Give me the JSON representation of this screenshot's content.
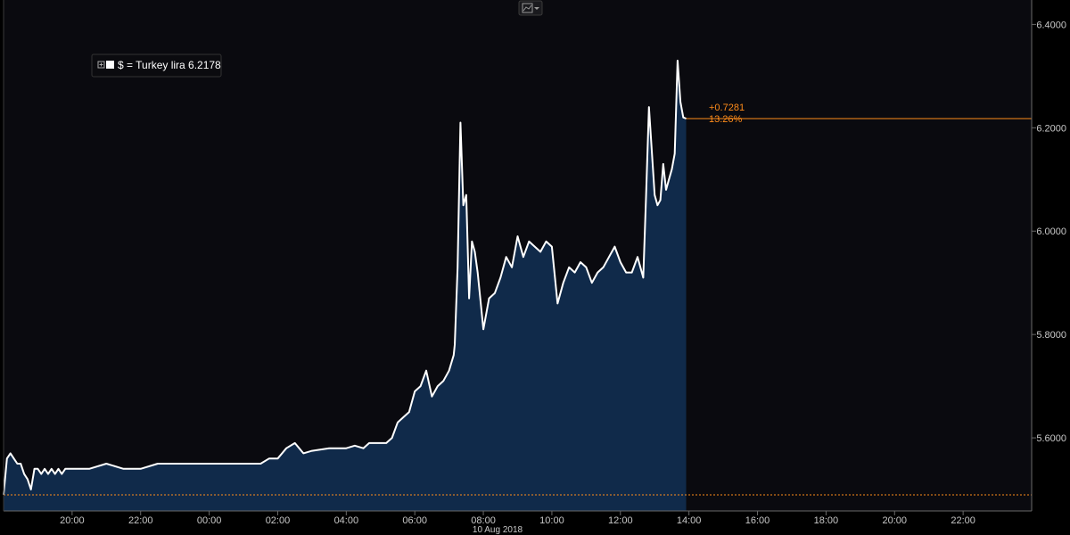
{
  "colors": {
    "background": "#000000",
    "plot_background": "#0a0a0f",
    "area_fill": "#102a4a",
    "line": "#ffffff",
    "reference": "#ff8c1a",
    "axis_text": "#c8c8c8"
  },
  "icons": {
    "chart_type": "line-chart-icon",
    "dropdown": "chevron-down-icon",
    "legend_expand": "plus-box-icon",
    "legend_swatch": "white-square-icon"
  },
  "legend": {
    "label": "$ =  Turkey lira 6.2178"
  },
  "annotation": {
    "change": "+0.7281",
    "percent": "13.26%"
  },
  "chart_data": {
    "type": "area",
    "x_axis": {
      "ticks": [
        "20:00",
        "22:00",
        "00:00",
        "02:00",
        "04:00",
        "06:00",
        "08:00",
        "10:00",
        "12:00",
        "14:00",
        "16:00",
        "18:00",
        "20:00",
        "22:00"
      ],
      "sublabel": "10 Aug 2018",
      "range": [
        "18:00",
        "24:00+1d"
      ]
    },
    "y_axis": {
      "ticks": [
        "5.6000",
        "5.8000",
        "6.0000",
        "6.2000",
        "6.4000"
      ],
      "range": [
        5.45,
        6.43
      ],
      "position": "right"
    },
    "last_value": 6.2178,
    "start_value": 5.4897,
    "grid": false,
    "legend_position": "top-left",
    "series": [
      {
        "x": [
          "18:00",
          "18:06",
          "18:12",
          "18:18",
          "18:24",
          "18:30",
          "18:36",
          "18:42",
          "18:48",
          "18:54",
          "19:00",
          "19:06",
          "19:12",
          "19:18",
          "19:24",
          "19:30",
          "19:36",
          "19:42",
          "19:48",
          "19:54",
          "20:00",
          "20:30",
          "21:00",
          "21:30",
          "22:00",
          "22:30",
          "23:00",
          "23:30",
          "00:00",
          "00:30",
          "01:00",
          "01:30",
          "01:45",
          "02:00",
          "02:15",
          "02:30",
          "02:45",
          "03:00",
          "03:30",
          "04:00",
          "04:15",
          "04:30",
          "04:40",
          "04:50",
          "05:00",
          "05:10",
          "05:20",
          "05:30",
          "05:40",
          "05:50",
          "06:00",
          "06:10",
          "06:20",
          "06:30",
          "06:40",
          "06:50",
          "07:00",
          "07:08",
          "07:10",
          "07:15",
          "07:20",
          "07:25",
          "07:30",
          "07:35",
          "07:40",
          "07:45",
          "07:50",
          "08:00",
          "08:10",
          "08:20",
          "08:30",
          "08:40",
          "08:50",
          "09:00",
          "09:10",
          "09:20",
          "09:30",
          "09:40",
          "09:50",
          "10:00",
          "10:10",
          "10:20",
          "10:30",
          "10:40",
          "10:50",
          "11:00",
          "11:10",
          "11:20",
          "11:30",
          "11:40",
          "11:50",
          "12:00",
          "12:10",
          "12:20",
          "12:30",
          "12:40",
          "12:45",
          "12:50",
          "13:00",
          "13:05",
          "13:10",
          "13:15",
          "13:20",
          "13:25",
          "13:30",
          "13:35",
          "13:40",
          "13:45",
          "13:50",
          "13:55"
        ],
        "y": [
          5.49,
          5.56,
          5.57,
          5.56,
          5.55,
          5.55,
          5.53,
          5.52,
          5.5,
          5.54,
          5.54,
          5.53,
          5.54,
          5.53,
          5.54,
          5.53,
          5.54,
          5.53,
          5.54,
          5.54,
          5.54,
          5.54,
          5.55,
          5.54,
          5.54,
          5.55,
          5.55,
          5.55,
          5.55,
          5.55,
          5.55,
          5.55,
          5.56,
          5.56,
          5.58,
          5.59,
          5.57,
          5.575,
          5.58,
          5.58,
          5.585,
          5.58,
          5.59,
          5.59,
          5.59,
          5.59,
          5.6,
          5.63,
          5.64,
          5.65,
          5.69,
          5.7,
          5.73,
          5.68,
          5.7,
          5.71,
          5.73,
          5.76,
          5.78,
          5.93,
          6.21,
          6.05,
          6.07,
          5.87,
          5.98,
          5.96,
          5.92,
          5.81,
          5.87,
          5.88,
          5.91,
          5.95,
          5.93,
          5.99,
          5.95,
          5.98,
          5.97,
          5.96,
          5.98,
          5.97,
          5.86,
          5.9,
          5.93,
          5.92,
          5.94,
          5.93,
          5.9,
          5.92,
          5.93,
          5.95,
          5.97,
          5.94,
          5.92,
          5.92,
          5.95,
          5.91,
          6.07,
          6.24,
          6.07,
          6.05,
          6.06,
          6.13,
          6.08,
          6.1,
          6.12,
          6.15,
          6.33,
          6.25,
          6.22,
          6.2178
        ]
      }
    ]
  }
}
